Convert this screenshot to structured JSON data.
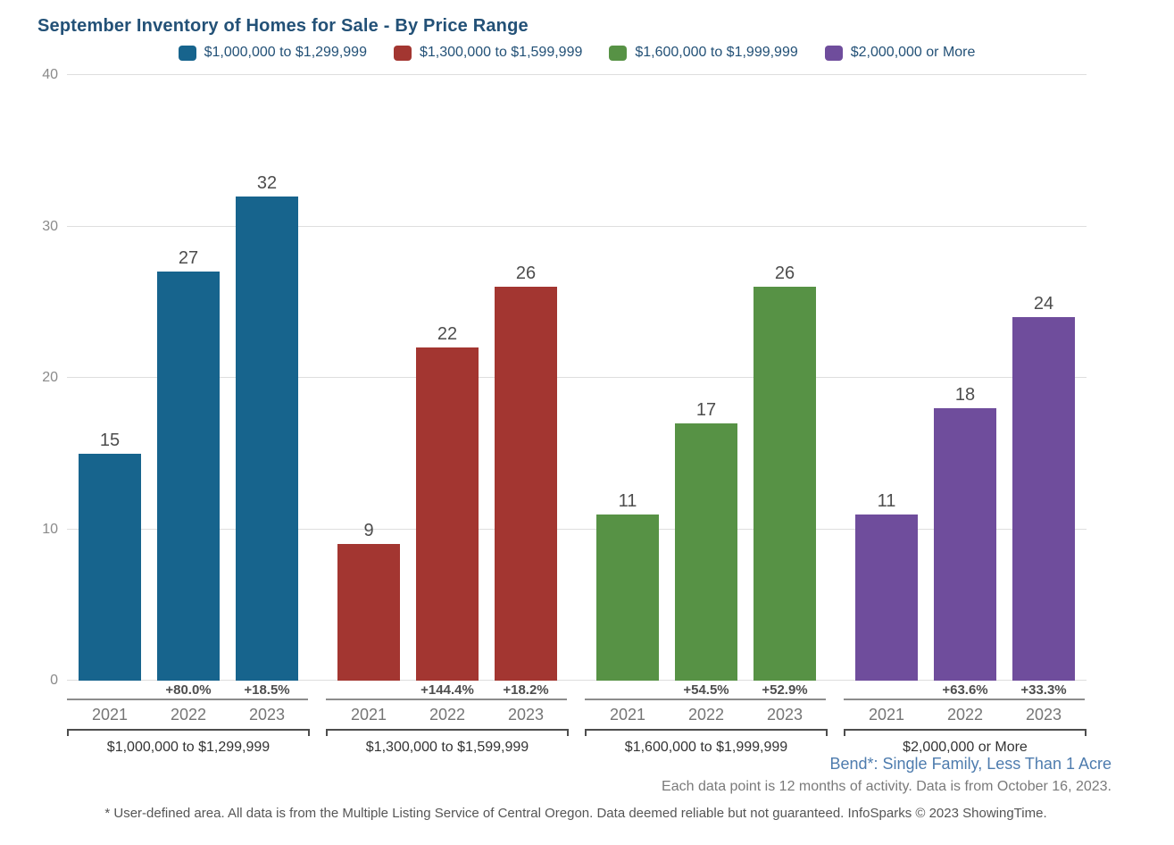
{
  "title": "September Inventory of Homes for Sale - By Price Range",
  "chart_data": {
    "type": "bar",
    "title": "September Inventory of Homes for Sale - By Price Range",
    "xlabel": "",
    "ylabel": "",
    "ylim": [
      0,
      40
    ],
    "yticks": [
      0,
      10,
      20,
      30,
      40
    ],
    "grid": true,
    "legend_position": "top",
    "categories": [
      "2021",
      "2022",
      "2023"
    ],
    "groups": [
      {
        "label": "$1,000,000 to $1,299,999",
        "color": "#17648D",
        "values": [
          15,
          27,
          32
        ],
        "pct_change": [
          "",
          "+80.0%",
          "+18.5%"
        ]
      },
      {
        "label": "$1,300,000 to $1,599,999",
        "color": "#A33631",
        "values": [
          9,
          22,
          26
        ],
        "pct_change": [
          "",
          "+144.4%",
          "+18.2%"
        ]
      },
      {
        "label": "$1,600,000 to $1,999,999",
        "color": "#579245",
        "values": [
          11,
          17,
          26
        ],
        "pct_change": [
          "",
          "+54.5%",
          "+52.9%"
        ]
      },
      {
        "label": "$2,000,000 or More",
        "color": "#6F4D9C",
        "values": [
          11,
          18,
          24
        ],
        "pct_change": [
          "",
          "+63.6%",
          "+33.3%"
        ]
      }
    ]
  },
  "notes": {
    "area": "Bend*: Single Family, Less Than 1 Acre",
    "activity": "Each data point is 12 months of activity. Data is from October 16, 2023.",
    "disclaimer": "* User-defined area. All data is from the Multiple Listing Service of Central Oregon. Data deemed reliable but not guaranteed. InfoSparks © 2023 ShowingTime."
  }
}
